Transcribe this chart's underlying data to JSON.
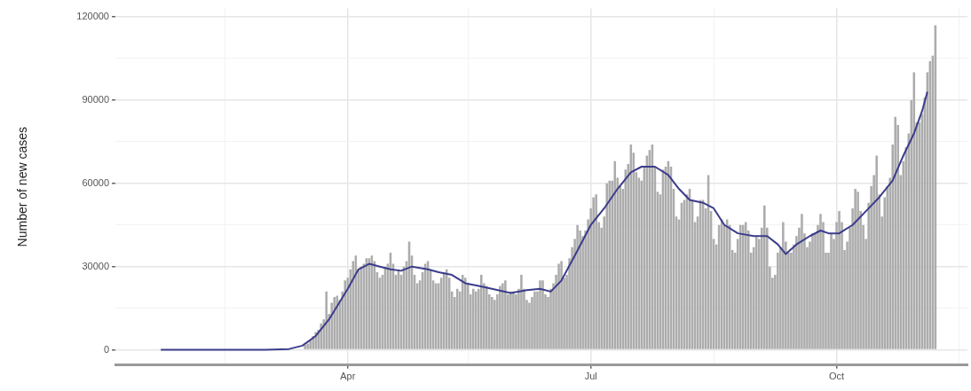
{
  "chart_data": {
    "type": "bar",
    "ylabel": "Number of new cases",
    "grid": true,
    "xlim": [
      "--01-05",
      "--11-19"
    ],
    "xticks": [
      {
        "value": "--02-15",
        "label": null
      },
      {
        "value": "--04-01",
        "label": "Apr"
      },
      {
        "value": "--05-16",
        "label": null
      },
      {
        "value": "--07-01",
        "label": "Jul"
      },
      {
        "value": "--08-16",
        "label": null
      },
      {
        "value": "--10-01",
        "label": "Oct"
      },
      {
        "value": "--11-16",
        "label": null
      }
    ],
    "ylim": [
      -5500,
      123000
    ],
    "yticks": [
      0,
      {
        "value": 15000,
        "label": null
      },
      30000,
      {
        "value": 45000,
        "label": null
      },
      60000,
      {
        "value": 75000,
        "label": null
      },
      90000,
      {
        "value": 105000,
        "label": null
      },
      120000
    ],
    "series": [
      {
        "color": "#acacac",
        "x": [
          "--03-16",
          "--03-17",
          "--03-18",
          "--03-19",
          "--03-20",
          "--03-21",
          "--03-22",
          "--03-23",
          "--03-24",
          "--03-25",
          "--03-26",
          "--03-27",
          "--03-28",
          "--03-29",
          "--03-30",
          "--03-31",
          "--04-01",
          "--04-02",
          "--04-03",
          "--04-04",
          "--04-05",
          "--04-06",
          "--04-07",
          "--04-08",
          "--04-09",
          "--04-10",
          "--04-11",
          "--04-12",
          "--04-13",
          "--04-14",
          "--04-15",
          "--04-16",
          "--04-17",
          "--04-18",
          "--04-19",
          "--04-20",
          "--04-21",
          "--04-22",
          "--04-23",
          "--04-24",
          "--04-25",
          "--04-26",
          "--04-27",
          "--04-28",
          "--04-29",
          "--04-30",
          "--05-01",
          "--05-02",
          "--05-03",
          "--05-04",
          "--05-05",
          "--05-06",
          "--05-07",
          "--05-08",
          "--05-09",
          "--05-10",
          "--05-11",
          "--05-12",
          "--05-13",
          "--05-14",
          "--05-15",
          "--05-16",
          "--05-17",
          "--05-18",
          "--05-19",
          "--05-20",
          "--05-21",
          "--05-22",
          "--05-23",
          "--05-24",
          "--05-25",
          "--05-26",
          "--05-27",
          "--05-28",
          "--05-29",
          "--05-30",
          "--05-31",
          "--06-01",
          "--06-02",
          "--06-03",
          "--06-04",
          "--06-05",
          "--06-06",
          "--06-07",
          "--06-08",
          "--06-09",
          "--06-10",
          "--06-11",
          "--06-12",
          "--06-13",
          "--06-14",
          "--06-15",
          "--06-16",
          "--06-17",
          "--06-18",
          "--06-19",
          "--06-20",
          "--06-21",
          "--06-22",
          "--06-23",
          "--06-24",
          "--06-25",
          "--06-26",
          "--06-27",
          "--06-28",
          "--06-29",
          "--06-30",
          "--07-01",
          "--07-02",
          "--07-03",
          "--07-04",
          "--07-05",
          "--07-06",
          "--07-07",
          "--07-08",
          "--07-09",
          "--07-10",
          "--07-11",
          "--07-12",
          "--07-13",
          "--07-14",
          "--07-15",
          "--07-16",
          "--07-17",
          "--07-18",
          "--07-19",
          "--07-20",
          "--07-21",
          "--07-22",
          "--07-23",
          "--07-24",
          "--07-25",
          "--07-26",
          "--07-27",
          "--07-28",
          "--07-29",
          "--07-30",
          "--07-31",
          "--08-01",
          "--08-02",
          "--08-03",
          "--08-04",
          "--08-05",
          "--08-06",
          "--08-07",
          "--08-08",
          "--08-09",
          "--08-10",
          "--08-11",
          "--08-12",
          "--08-13",
          "--08-14",
          "--08-15",
          "--08-16",
          "--08-17",
          "--08-18",
          "--08-19",
          "--08-20",
          "--08-21",
          "--08-22",
          "--08-23",
          "--08-24",
          "--08-25",
          "--08-26",
          "--08-27",
          "--08-28",
          "--08-29",
          "--08-30",
          "--08-31",
          "--09-01",
          "--09-02",
          "--09-03",
          "--09-04",
          "--09-05",
          "--09-06",
          "--09-07",
          "--09-08",
          "--09-09",
          "--09-10",
          "--09-11",
          "--09-12",
          "--09-13",
          "--09-14",
          "--09-15",
          "--09-16",
          "--09-17",
          "--09-18",
          "--09-19",
          "--09-20",
          "--09-21",
          "--09-22",
          "--09-23",
          "--09-24",
          "--09-25",
          "--09-26",
          "--09-27",
          "--09-28",
          "--09-29",
          "--09-30",
          "--10-01",
          "--10-02",
          "--10-03",
          "--10-04",
          "--10-05",
          "--10-06",
          "--10-07",
          "--10-08",
          "--10-09",
          "--10-10",
          "--10-11",
          "--10-12",
          "--10-13",
          "--10-14",
          "--10-15",
          "--10-16",
          "--10-17",
          "--10-18",
          "--10-19",
          "--10-20",
          "--10-21",
          "--10-22",
          "--10-23",
          "--10-24",
          "--10-25",
          "--10-26",
          "--10-27",
          "--10-28",
          "--10-29",
          "--10-30",
          "--10-31",
          "--11-01",
          "--11-02",
          "--11-03",
          "--11-04",
          "--11-05",
          "--11-06",
          "--11-07"
        ],
        "values": [
          1800,
          2300,
          3500,
          5000,
          6400,
          7200,
          9500,
          11000,
          21000,
          13000,
          17000,
          19000,
          19500,
          18000,
          21000,
          25000,
          26000,
          29000,
          32000,
          34000,
          29000,
          30000,
          31000,
          33000,
          33000,
          34000,
          32000,
          28000,
          26000,
          27000,
          30000,
          31000,
          35000,
          31000,
          27000,
          29000,
          27000,
          30000,
          32000,
          39000,
          34000,
          27000,
          24000,
          25000,
          28000,
          31000,
          32000,
          29000,
          25000,
          24000,
          24000,
          26000,
          28000,
          29000,
          26000,
          21000,
          19000,
          22000,
          21000,
          27000,
          26000,
          24000,
          20000,
          22000,
          21000,
          22000,
          27000,
          24000,
          23000,
          20000,
          19000,
          18000,
          20000,
          23000,
          24000,
          25000,
          20000,
          21000,
          21000,
          20000,
          22000,
          27000,
          22000,
          18000,
          17000,
          19000,
          21000,
          21000,
          25000,
          25000,
          20000,
          19000,
          22000,
          24000,
          27000,
          31000,
          32000,
          26000,
          27000,
          33000,
          37000,
          40000,
          45000,
          43000,
          41000,
          43000,
          47000,
          51000,
          55000,
          56000,
          46000,
          44000,
          48000,
          60000,
          61000,
          61000,
          68000,
          62000,
          59000,
          58000,
          65000,
          67000,
          74000,
          71000,
          64000,
          62000,
          61000,
          66000,
          70000,
          72000,
          74000,
          66000,
          57000,
          56000,
          65000,
          66000,
          68000,
          66000,
          58000,
          48000,
          47000,
          53000,
          54000,
          56000,
          58000,
          54000,
          46000,
          48000,
          54000,
          54000,
          51000,
          63000,
          50000,
          40000,
          38000,
          45000,
          47000,
          45000,
          47000,
          45000,
          36000,
          35000,
          40000,
          45000,
          45000,
          46000,
          43000,
          35000,
          37000,
          41000,
          40000,
          44000,
          52000,
          44000,
          30000,
          26000,
          27000,
          35000,
          37000,
          46000,
          39000,
          35000,
          35000,
          38000,
          41000,
          44000,
          49000,
          42000,
          37000,
          39000,
          42000,
          42000,
          45000,
          49000,
          46000,
          35000,
          35000,
          42000,
          40000,
          46000,
          50000,
          46000,
          36000,
          39000,
          44000,
          51000,
          58000,
          57000,
          50000,
          45000,
          40000,
          53000,
          59000,
          63000,
          70000,
          56000,
          48000,
          55000,
          59000,
          62000,
          74000,
          84000,
          81000,
          63000,
          68000,
          73000,
          78000,
          90000,
          100000,
          82000,
          82000,
          85000,
          91000,
          100000,
          104000,
          106000,
          117000
        ]
      },
      {
        "type": "line",
        "color": "#3c3c8c",
        "x": [
          "--01-22",
          "--02-15",
          "--03-01",
          "--03-10",
          "--03-15",
          "--03-20",
          "--03-25",
          "--04-01",
          "--04-05",
          "--04-09",
          "--04-13",
          "--04-17",
          "--04-21",
          "--04-25",
          "--05-01",
          "--05-05",
          "--05-10",
          "--05-15",
          "--05-20",
          "--05-25",
          "--06-01",
          "--06-07",
          "--06-12",
          "--06-16",
          "--06-20",
          "--06-25",
          "--07-01",
          "--07-06",
          "--07-11",
          "--07-16",
          "--07-20",
          "--07-25",
          "--07-30",
          "--08-03",
          "--08-07",
          "--08-12",
          "--08-16",
          "--08-20",
          "--08-25",
          "--08-31",
          "--09-05",
          "--09-09",
          "--09-12",
          "--09-16",
          "--09-21",
          "--09-25",
          "--09-28",
          "--10-02",
          "--10-07",
          "--10-12",
          "--10-17",
          "--10-22",
          "--10-26",
          "--10-30",
          "--11-02",
          "--11-04"
        ],
        "values": [
          0,
          0,
          0,
          300,
          1500,
          5000,
          11000,
          22000,
          29000,
          31000,
          30000,
          29000,
          28500,
          30000,
          29000,
          28000,
          27000,
          24000,
          23000,
          22000,
          20500,
          21500,
          22000,
          21000,
          25000,
          34000,
          45000,
          51000,
          58000,
          64000,
          66000,
          66000,
          63000,
          58000,
          54000,
          53000,
          51000,
          45000,
          42000,
          41000,
          41000,
          38000,
          34500,
          38000,
          41000,
          43000,
          42000,
          42000,
          45000,
          50000,
          55000,
          61000,
          70000,
          78000,
          86000,
          93000
        ]
      }
    ]
  }
}
